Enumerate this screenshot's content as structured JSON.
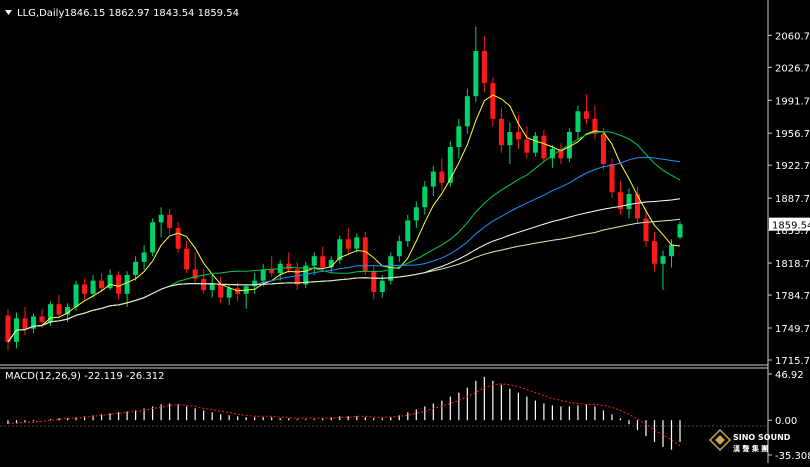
{
  "header": {
    "symbol_timeframe": "LLG,Daily",
    "ohlc": "1846.15 1862.97 1843.54 1859.54"
  },
  "macd": {
    "label": "MACD(12,26,9) -22.119 -26.312"
  },
  "price_axis": {
    "ticks": [
      "2060.70",
      "2026.70",
      "1991.70",
      "1956.70",
      "1922.70",
      "1887.70",
      "1853.70",
      "1818.70",
      "1784.70",
      "1749.70",
      "1715.70"
    ],
    "current_price": "1859.54",
    "range": [
      1715.7,
      2077
    ]
  },
  "macd_axis": {
    "ticks": [
      "46.92",
      "0.00",
      "-35.308"
    ],
    "range": [
      -35.308,
      46.92
    ]
  },
  "logo": {
    "brand": "SINO SOUND",
    "sub": "漢 聲 集 團"
  },
  "colors": {
    "background": "#000000",
    "bull": "#00d36a",
    "bear": "#ff1a1a",
    "ma_fast": "#ffff33",
    "ma_mid": "#1e90ff",
    "ma_slow": "#00c853",
    "ma_long": "#ffffff",
    "ma_longest": "#e8e8b0",
    "macd_hist": "#ffffff",
    "macd_signal": "#ff2222"
  },
  "chart_data": {
    "type": "candlestick",
    "title": "LLG,Daily",
    "ylim": [
      1715.7,
      2077
    ],
    "ohlc": [
      [
        1763,
        1770,
        1726,
        1735
      ],
      [
        1735,
        1766,
        1728,
        1760
      ],
      [
        1760,
        1772,
        1742,
        1749
      ],
      [
        1749,
        1765,
        1744,
        1762
      ],
      [
        1762,
        1770,
        1750,
        1756
      ],
      [
        1756,
        1778,
        1752,
        1775
      ],
      [
        1775,
        1785,
        1760,
        1764
      ],
      [
        1764,
        1776,
        1756,
        1772
      ],
      [
        1772,
        1800,
        1768,
        1796
      ],
      [
        1796,
        1802,
        1780,
        1786
      ],
      [
        1786,
        1806,
        1782,
        1800
      ],
      [
        1800,
        1808,
        1788,
        1792
      ],
      [
        1792,
        1812,
        1790,
        1806
      ],
      [
        1806,
        1810,
        1780,
        1786
      ],
      [
        1786,
        1810,
        1772,
        1806
      ],
      [
        1806,
        1826,
        1800,
        1820
      ],
      [
        1820,
        1838,
        1812,
        1830
      ],
      [
        1830,
        1866,
        1826,
        1862
      ],
      [
        1862,
        1878,
        1846,
        1870
      ],
      [
        1870,
        1876,
        1850,
        1856
      ],
      [
        1856,
        1862,
        1830,
        1834
      ],
      [
        1834,
        1842,
        1808,
        1812
      ],
      [
        1812,
        1830,
        1798,
        1802
      ],
      [
        1802,
        1812,
        1786,
        1790
      ],
      [
        1790,
        1806,
        1782,
        1796
      ],
      [
        1796,
        1804,
        1776,
        1782
      ],
      [
        1782,
        1796,
        1774,
        1792
      ],
      [
        1792,
        1798,
        1778,
        1786
      ],
      [
        1786,
        1796,
        1770,
        1794
      ],
      [
        1794,
        1808,
        1786,
        1800
      ],
      [
        1800,
        1818,
        1794,
        1812
      ],
      [
        1812,
        1826,
        1804,
        1808
      ],
      [
        1808,
        1822,
        1800,
        1818
      ],
      [
        1818,
        1830,
        1808,
        1812
      ],
      [
        1812,
        1820,
        1790,
        1796
      ],
      [
        1796,
        1820,
        1792,
        1816
      ],
      [
        1816,
        1830,
        1806,
        1826
      ],
      [
        1826,
        1836,
        1810,
        1814
      ],
      [
        1814,
        1826,
        1808,
        1822
      ],
      [
        1822,
        1848,
        1818,
        1844
      ],
      [
        1844,
        1856,
        1828,
        1834
      ],
      [
        1834,
        1850,
        1830,
        1846
      ],
      [
        1846,
        1852,
        1806,
        1810
      ],
      [
        1810,
        1816,
        1780,
        1788
      ],
      [
        1788,
        1806,
        1782,
        1800
      ],
      [
        1800,
        1830,
        1796,
        1826
      ],
      [
        1826,
        1848,
        1820,
        1842
      ],
      [
        1842,
        1870,
        1836,
        1864
      ],
      [
        1864,
        1884,
        1856,
        1878
      ],
      [
        1878,
        1906,
        1870,
        1900
      ],
      [
        1900,
        1922,
        1890,
        1916
      ],
      [
        1916,
        1930,
        1896,
        1904
      ],
      [
        1904,
        1948,
        1900,
        1942
      ],
      [
        1942,
        1972,
        1930,
        1964
      ],
      [
        1964,
        2004,
        1956,
        1996
      ],
      [
        1996,
        2070,
        1990,
        2044
      ],
      [
        2044,
        2060,
        2000,
        2010
      ],
      [
        2010,
        2016,
        1964,
        1972
      ],
      [
        1972,
        1984,
        1936,
        1944
      ],
      [
        1944,
        1968,
        1924,
        1958
      ],
      [
        1958,
        1976,
        1940,
        1950
      ],
      [
        1950,
        1964,
        1930,
        1936
      ],
      [
        1936,
        1958,
        1932,
        1954
      ],
      [
        1954,
        1960,
        1926,
        1930
      ],
      [
        1930,
        1944,
        1920,
        1940
      ],
      [
        1940,
        1946,
        1924,
        1930
      ],
      [
        1930,
        1962,
        1926,
        1958
      ],
      [
        1958,
        1986,
        1950,
        1980
      ],
      [
        1980,
        1998,
        1966,
        1972
      ],
      [
        1972,
        1986,
        1950,
        1956
      ],
      [
        1956,
        1962,
        1918,
        1924
      ],
      [
        1924,
        1930,
        1888,
        1894
      ],
      [
        1894,
        1906,
        1870,
        1876
      ],
      [
        1876,
        1898,
        1866,
        1892
      ],
      [
        1892,
        1900,
        1860,
        1866
      ],
      [
        1866,
        1878,
        1836,
        1842
      ],
      [
        1842,
        1852,
        1810,
        1818
      ],
      [
        1818,
        1832,
        1790,
        1826
      ],
      [
        1826,
        1844,
        1814,
        1838
      ],
      [
        1846,
        1863,
        1844,
        1860
      ]
    ],
    "macd": [
      -4,
      -3,
      -2,
      -1,
      0,
      1,
      2,
      2,
      3,
      4,
      5,
      6,
      7,
      8,
      9,
      10,
      12,
      14,
      16,
      17,
      16,
      14,
      12,
      10,
      8,
      6,
      5,
      4,
      3,
      3,
      3,
      3,
      2,
      2,
      1,
      1,
      1,
      2,
      3,
      4,
      4,
      4,
      3,
      2,
      2,
      3,
      5,
      8,
      11,
      14,
      17,
      20,
      24,
      28,
      33,
      40,
      44,
      40,
      36,
      32,
      28,
      24,
      20,
      17,
      15,
      14,
      14,
      15,
      16,
      14,
      10,
      6,
      2,
      -4,
      -10,
      -16,
      -22,
      -27,
      -30,
      -22
    ],
    "signal": [
      -3,
      -3,
      -2,
      -2,
      -1,
      0,
      1,
      2,
      2,
      3,
      4,
      5,
      6,
      7,
      8,
      9,
      10,
      12,
      13,
      15,
      16,
      15,
      14,
      12,
      11,
      9,
      8,
      6,
      5,
      4,
      4,
      4,
      3,
      3,
      2,
      2,
      2,
      2,
      2,
      3,
      3,
      4,
      4,
      3,
      3,
      3,
      4,
      5,
      7,
      9,
      12,
      14,
      17,
      20,
      24,
      28,
      33,
      36,
      37,
      36,
      34,
      31,
      28,
      25,
      22,
      20,
      18,
      17,
      16,
      16,
      15,
      13,
      10,
      6,
      1,
      -4,
      -10,
      -15,
      -20,
      -26
    ],
    "moving_averages": [
      {
        "period": 5,
        "color_key": "ma_fast"
      },
      {
        "period": 20,
        "color_key": "ma_slow"
      },
      {
        "period": 30,
        "color_key": "ma_mid"
      },
      {
        "period": 50,
        "color_key": "ma_long"
      },
      {
        "period": 70,
        "color_key": "ma_longest"
      }
    ]
  }
}
